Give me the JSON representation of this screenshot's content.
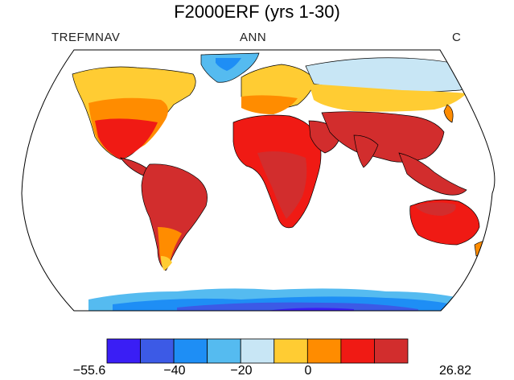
{
  "title": "F2000ERF (yrs 1-30)",
  "variable": "TREFMNAV",
  "period": "ANN",
  "units": "C",
  "colorbar": {
    "min_label": "−55.6",
    "tick_labels": [
      "−40",
      "−20",
      "0"
    ],
    "max_label": "26.82",
    "colors": [
      "#3a1ef5",
      "#3c5ae6",
      "#1e8ef5",
      "#55bbf0",
      "#c8e6f5",
      "#ffcc33",
      "#ff8c00",
      "#f01a14",
      "#d22d2d"
    ]
  },
  "legend_colors": {
    "ocean": "#ffffff",
    "coast": "#000000"
  }
}
